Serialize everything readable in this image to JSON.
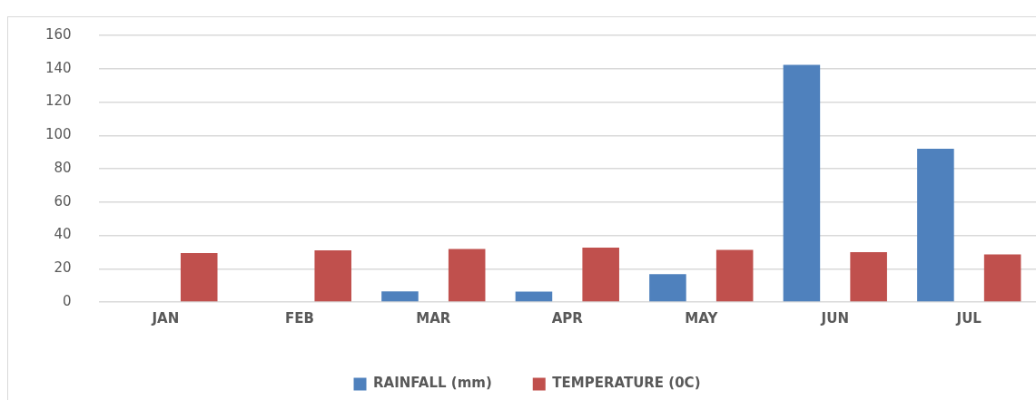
{
  "chart_data": {
    "type": "bar",
    "categories": [
      "JAN",
      "FEB",
      "MAR",
      "APR",
      "MAY",
      "JUN",
      "JUL"
    ],
    "series": [
      {
        "name": "RAINFALL (mm)",
        "color": "#4f81bd",
        "values": [
          0,
          0,
          6.4,
          6.2,
          16.7,
          142.3,
          92
        ]
      },
      {
        "name": "TEMPERATURE (0C)",
        "color": "#c0504d",
        "values": [
          29.4,
          31,
          31.8,
          32.7,
          31.3,
          29.9,
          28.6
        ]
      }
    ],
    "ylim": [
      0,
      160
    ],
    "yticks": [
      0,
      20,
      40,
      60,
      80,
      100,
      120,
      140,
      160
    ],
    "grid": "y",
    "legend": "bottom"
  }
}
